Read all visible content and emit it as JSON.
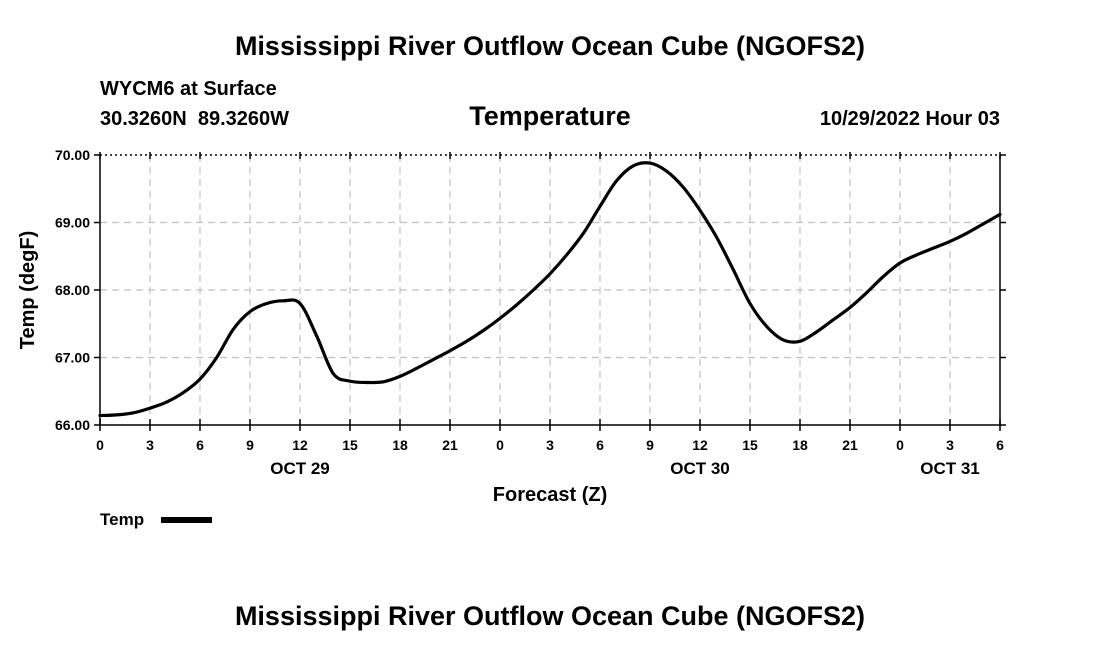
{
  "colors": {
    "series": "#000000",
    "grid": "#c0c0c0",
    "background": "#ffffff"
  },
  "header": {
    "title": "Mississippi River Outflow Ocean Cube (NGOFS2)",
    "station": "WYCM6 at Surface",
    "coords": "30.3260N  89.3260W",
    "datetime": "10/29/2022 Hour 03"
  },
  "footer": {
    "title": "Mississippi River Outflow Ocean Cube (NGOFS2)"
  },
  "chart_data": {
    "type": "line",
    "title": "Temperature",
    "xlabel": "Forecast (Z)",
    "ylabel": "Temp (degF)",
    "ylim": [
      66.0,
      70.0
    ],
    "yticks": [
      "66.00",
      "67.00",
      "68.00",
      "69.00",
      "70.00"
    ],
    "xlim": [
      0,
      54
    ],
    "xticks": [
      {
        "x": 0,
        "label": "0"
      },
      {
        "x": 3,
        "label": "3"
      },
      {
        "x": 6,
        "label": "6"
      },
      {
        "x": 9,
        "label": "9"
      },
      {
        "x": 12,
        "label": "12"
      },
      {
        "x": 15,
        "label": "15"
      },
      {
        "x": 18,
        "label": "18"
      },
      {
        "x": 21,
        "label": "21"
      },
      {
        "x": 24,
        "label": "0"
      },
      {
        "x": 27,
        "label": "3"
      },
      {
        "x": 30,
        "label": "6"
      },
      {
        "x": 33,
        "label": "9"
      },
      {
        "x": 36,
        "label": "12"
      },
      {
        "x": 39,
        "label": "15"
      },
      {
        "x": 42,
        "label": "18"
      },
      {
        "x": 45,
        "label": "21"
      },
      {
        "x": 48,
        "label": "0"
      },
      {
        "x": 51,
        "label": "3"
      },
      {
        "x": 54,
        "label": "6"
      }
    ],
    "day_labels": [
      {
        "x": 12,
        "label": "OCT 29"
      },
      {
        "x": 36,
        "label": "OCT 30"
      },
      {
        "x": 51,
        "label": "OCT 31"
      }
    ],
    "legend": {
      "label": "Temp",
      "position": "bottom-left"
    },
    "grid": true,
    "series": [
      {
        "name": "Temp",
        "x": [
          0,
          1,
          2,
          3,
          4,
          5,
          6,
          7,
          8,
          9,
          10,
          11,
          12,
          13,
          14,
          15,
          16,
          17,
          18,
          19,
          20,
          21,
          22,
          23,
          24,
          25,
          26,
          27,
          28,
          29,
          30,
          31,
          32,
          33,
          34,
          35,
          36,
          37,
          38,
          39,
          40,
          41,
          42,
          43,
          44,
          45,
          46,
          47,
          48,
          49,
          50,
          51,
          52,
          53,
          54
        ],
        "values": [
          66.14,
          66.15,
          66.18,
          66.25,
          66.34,
          66.48,
          66.68,
          67.0,
          67.42,
          67.68,
          67.8,
          67.84,
          67.8,
          67.32,
          66.76,
          66.65,
          66.63,
          66.64,
          66.72,
          66.84,
          66.97,
          67.1,
          67.24,
          67.4,
          67.58,
          67.78,
          68.0,
          68.24,
          68.52,
          68.84,
          69.24,
          69.62,
          69.84,
          69.88,
          69.76,
          69.52,
          69.18,
          68.78,
          68.3,
          67.8,
          67.46,
          67.26,
          67.24,
          67.38,
          67.56,
          67.74,
          67.96,
          68.2,
          68.4,
          68.52,
          68.62,
          68.72,
          68.84,
          68.98,
          69.12
        ]
      }
    ]
  }
}
